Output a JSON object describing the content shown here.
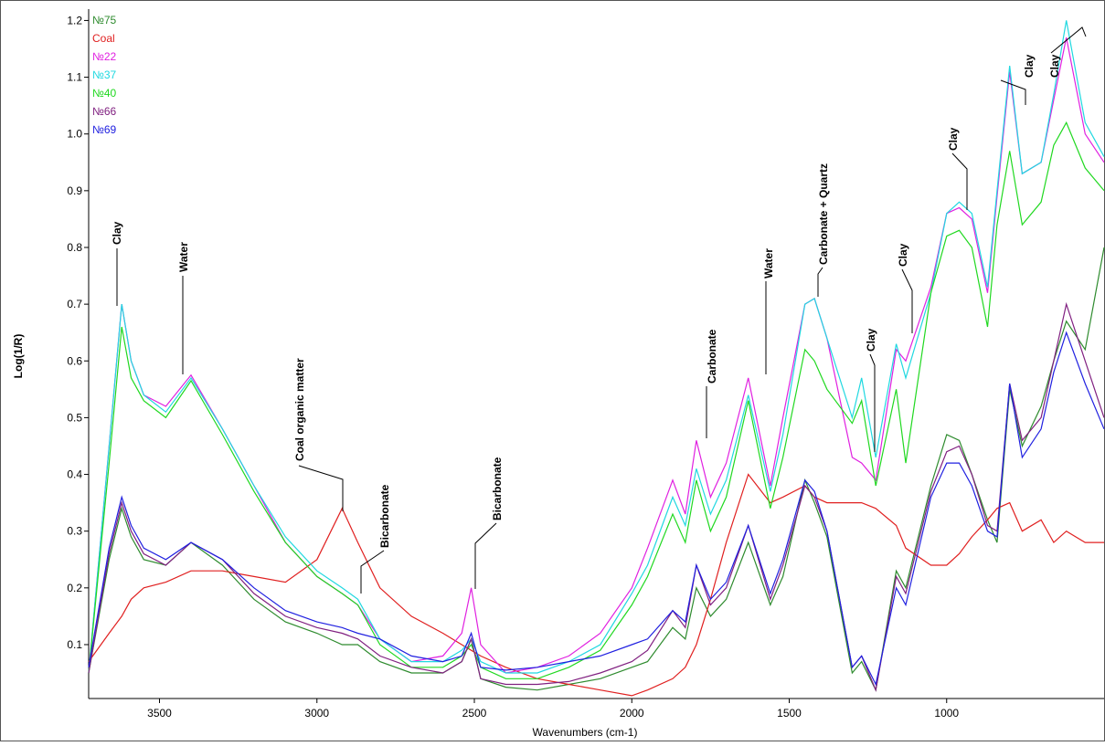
{
  "chart_data": {
    "type": "line",
    "x_label": "Wavenumbers (cm-1)",
    "y_label": "Log(1/R)",
    "xlim": [
      3725,
      500
    ],
    "ylim": [
      0.005,
      1.22
    ],
    "xticks": [
      3500,
      3000,
      2500,
      2000,
      1500,
      1000
    ],
    "yticks": [
      0.1,
      0.2,
      0.3,
      0.4,
      0.5,
      0.6,
      0.7,
      0.8,
      0.9,
      {
        "value": 1,
        "label": "1.0"
      },
      1.1,
      1.2
    ],
    "x": [
      3725,
      3660,
      3620,
      3590,
      3550,
      3480,
      3400,
      3300,
      3200,
      3100,
      3000,
      2920,
      2870,
      2800,
      2700,
      2600,
      2540,
      2510,
      2480,
      2400,
      2300,
      2200,
      2100,
      2000,
      1950,
      1870,
      1830,
      1795,
      1750,
      1700,
      1630,
      1560,
      1520,
      1450,
      1420,
      1380,
      1300,
      1270,
      1225,
      1160,
      1130,
      1050,
      1000,
      960,
      920,
      870,
      840,
      800,
      760,
      700,
      660,
      620,
      560,
      500
    ],
    "series": [
      {
        "name": "№75",
        "color": "#2e8b2e",
        "values": [
          0.05,
          0.25,
          0.34,
          0.29,
          0.25,
          0.24,
          0.28,
          0.24,
          0.18,
          0.14,
          0.12,
          0.1,
          0.1,
          0.07,
          0.05,
          0.05,
          0.07,
          0.11,
          0.04,
          0.025,
          0.02,
          0.03,
          0.04,
          0.06,
          0.07,
          0.13,
          0.11,
          0.2,
          0.15,
          0.18,
          0.28,
          0.17,
          0.22,
          0.39,
          0.35,
          0.29,
          0.05,
          0.07,
          0.02,
          0.23,
          0.2,
          0.38,
          0.47,
          0.46,
          0.4,
          0.32,
          0.28,
          0.55,
          0.45,
          0.52,
          0.6,
          0.67,
          0.62,
          0.8
        ]
      },
      {
        "name": "Coal",
        "color": "#e02020",
        "values": [
          0.07,
          0.12,
          0.15,
          0.18,
          0.2,
          0.21,
          0.23,
          0.23,
          0.22,
          0.21,
          0.25,
          0.34,
          0.28,
          0.2,
          0.15,
          0.12,
          0.1,
          0.09,
          0.08,
          0.06,
          0.04,
          0.03,
          0.02,
          0.01,
          0.02,
          0.04,
          0.06,
          0.1,
          0.18,
          0.28,
          0.4,
          0.35,
          0.36,
          0.38,
          0.36,
          0.35,
          0.35,
          0.35,
          0.34,
          0.31,
          0.27,
          0.24,
          0.24,
          0.26,
          0.29,
          0.32,
          0.34,
          0.35,
          0.3,
          0.32,
          0.28,
          0.3,
          0.28,
          0.28
        ]
      },
      {
        "name": "№22",
        "color": "#e020e0",
        "values": [
          0.05,
          0.45,
          0.7,
          0.6,
          0.54,
          0.52,
          0.575,
          0.48,
          0.38,
          0.28,
          0.22,
          0.19,
          0.17,
          0.11,
          0.07,
          0.08,
          0.12,
          0.2,
          0.1,
          0.05,
          0.06,
          0.08,
          0.12,
          0.2,
          0.27,
          0.39,
          0.33,
          0.46,
          0.36,
          0.42,
          0.57,
          0.38,
          0.5,
          0.7,
          0.71,
          0.64,
          0.43,
          0.42,
          0.39,
          0.62,
          0.6,
          0.73,
          0.86,
          0.87,
          0.85,
          0.72,
          0.89,
          1.11,
          0.93,
          0.95,
          1.06,
          1.17,
          1.0,
          0.95
        ]
      },
      {
        "name": "№37",
        "color": "#20d8e0",
        "values": [
          0.05,
          0.45,
          0.7,
          0.6,
          0.54,
          0.51,
          0.57,
          0.48,
          0.38,
          0.29,
          0.23,
          0.2,
          0.18,
          0.11,
          0.07,
          0.07,
          0.09,
          0.11,
          0.07,
          0.05,
          0.05,
          0.07,
          0.1,
          0.19,
          0.24,
          0.36,
          0.31,
          0.41,
          0.33,
          0.39,
          0.54,
          0.37,
          0.47,
          0.7,
          0.71,
          0.64,
          0.5,
          0.57,
          0.43,
          0.63,
          0.57,
          0.72,
          0.86,
          0.88,
          0.86,
          0.73,
          0.9,
          1.12,
          0.93,
          0.95,
          1.07,
          1.2,
          1.02,
          0.96
        ]
      },
      {
        "name": "№40",
        "color": "#20d820",
        "values": [
          0.05,
          0.42,
          0.66,
          0.57,
          0.53,
          0.5,
          0.565,
          0.47,
          0.37,
          0.28,
          0.22,
          0.19,
          0.17,
          0.1,
          0.06,
          0.06,
          0.08,
          0.1,
          0.06,
          0.04,
          0.04,
          0.06,
          0.09,
          0.17,
          0.22,
          0.33,
          0.28,
          0.39,
          0.3,
          0.36,
          0.53,
          0.34,
          0.43,
          0.62,
          0.6,
          0.55,
          0.49,
          0.53,
          0.38,
          0.55,
          0.42,
          0.72,
          0.82,
          0.83,
          0.8,
          0.66,
          0.84,
          0.97,
          0.84,
          0.88,
          0.98,
          1.02,
          0.94,
          0.9
        ]
      },
      {
        "name": "№66",
        "color": "#802080",
        "values": [
          0.05,
          0.26,
          0.35,
          0.3,
          0.26,
          0.24,
          0.28,
          0.25,
          0.19,
          0.15,
          0.13,
          0.12,
          0.11,
          0.08,
          0.06,
          0.05,
          0.07,
          0.11,
          0.04,
          0.03,
          0.03,
          0.035,
          0.05,
          0.07,
          0.09,
          0.16,
          0.13,
          0.24,
          0.17,
          0.2,
          0.31,
          0.18,
          0.24,
          0.38,
          0.36,
          0.3,
          0.06,
          0.08,
          0.02,
          0.22,
          0.19,
          0.37,
          0.44,
          0.45,
          0.4,
          0.31,
          0.3,
          0.56,
          0.46,
          0.5,
          0.6,
          0.7,
          0.6,
          0.5
        ]
      },
      {
        "name": "№69",
        "color": "#2020e0",
        "values": [
          0.06,
          0.27,
          0.36,
          0.31,
          0.27,
          0.25,
          0.28,
          0.25,
          0.2,
          0.16,
          0.14,
          0.13,
          0.12,
          0.11,
          0.08,
          0.07,
          0.08,
          0.12,
          0.06,
          0.055,
          0.06,
          0.07,
          0.08,
          0.1,
          0.11,
          0.16,
          0.14,
          0.24,
          0.18,
          0.21,
          0.31,
          0.19,
          0.25,
          0.39,
          0.37,
          0.3,
          0.06,
          0.08,
          0.03,
          0.2,
          0.17,
          0.36,
          0.42,
          0.42,
          0.38,
          0.3,
          0.29,
          0.56,
          0.43,
          0.48,
          0.58,
          0.65,
          0.56,
          0.48
        ]
      }
    ],
    "annotations": [
      "Clay",
      "Water",
      "Coal organic matter",
      "Bicarbonate",
      "Bicarbonate",
      "Carbonate",
      "Water",
      "Carbonate + Quartz",
      "Clay",
      "Clay",
      "Clay",
      "Clay",
      "Clay"
    ]
  }
}
